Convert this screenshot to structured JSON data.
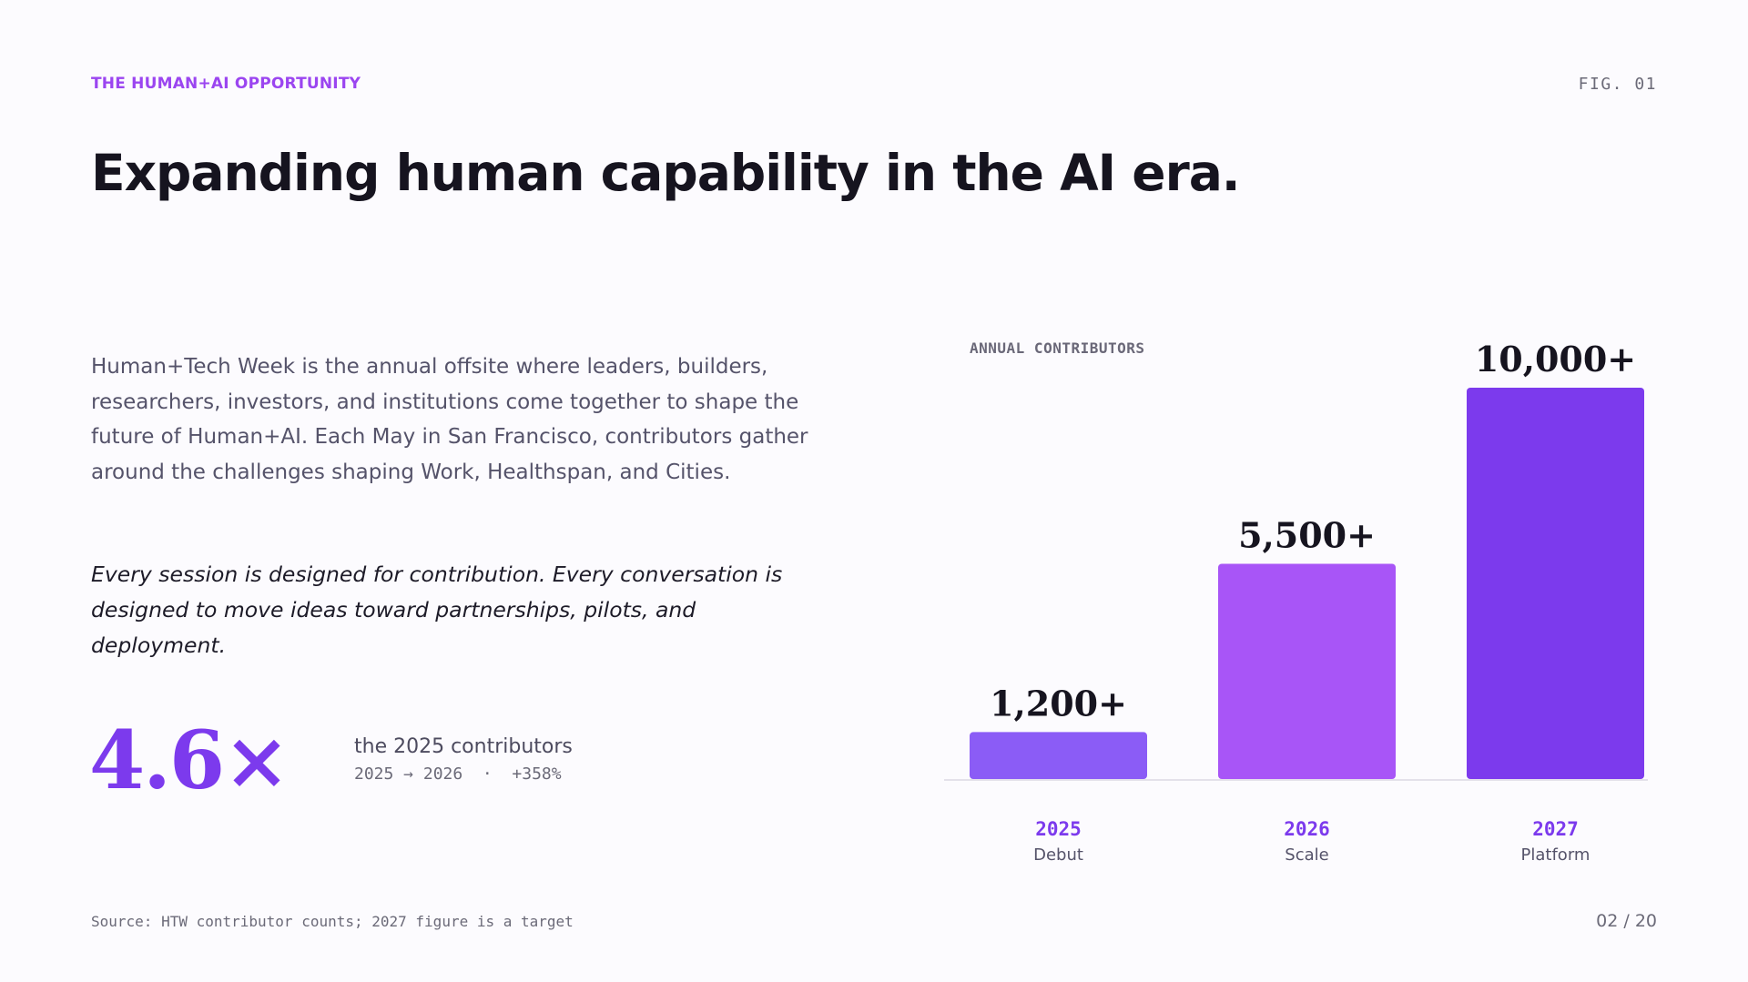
{
  "slide": {
    "eyebrow": "THE HUMAN+AI OPPORTUNITY",
    "fig_label": "FIG. 01",
    "title": "Expanding human capability in the AI era.",
    "intro": "Human+Tech Week is the annual offsite where leaders, builders, researchers, investors, and institutions come together to shape the future of Human+AI. Each May in San Francisco, contributors gather around the challenges shaping Work, Healthspan, and Cities.",
    "quote": "Every session is designed for contribution. Every conversation is designed to move ideas toward partnerships, pilots, and deployment.",
    "stat_value": "4.6×",
    "stat_caption": "the 2025 contributors",
    "stat_sub": "2025 → 2026  ·  +358%",
    "chart_label": "ANNUAL CONTRIBUTORS",
    "source": "Source: HTW contributor counts; 2027 figure is a target",
    "page": "02 / 20"
  },
  "colors": {
    "accent": "#9b45f0",
    "stat": "#7c3aed",
    "bar_2025": "#8b5cf6",
    "bar_2026": "#a855f7",
    "bar_2027": "#7c3aed",
    "year_label": "#7c3aed",
    "baseline": "#e4e1ea"
  },
  "chart_data": {
    "type": "bar",
    "categories": [
      "2025",
      "2026",
      "2027"
    ],
    "sublabels": [
      "Debut",
      "Scale",
      "Platform"
    ],
    "values": [
      1200,
      5500,
      10000
    ],
    "value_labels": [
      "1,200+",
      "5,500+",
      "10,000+"
    ],
    "title": "ANNUAL CONTRIBUTORS",
    "ylim": [
      0,
      10000
    ],
    "grid": false,
    "legend": "none"
  }
}
